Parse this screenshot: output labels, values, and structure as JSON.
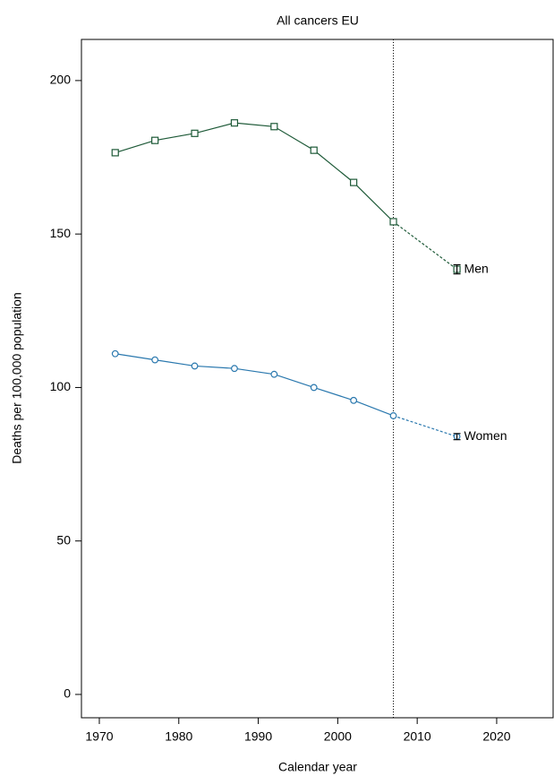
{
  "chart_data": {
    "type": "line",
    "title": "All cancers EU",
    "x_label": "Calendar year",
    "y_label": "Deaths per 100,000 population",
    "x": [
      1972,
      1977,
      1982,
      1987,
      1992,
      1997,
      2002,
      2007
    ],
    "xlim": [
      1967.75,
      2027.1
    ],
    "ylim": [
      -7.6,
      213.4
    ],
    "xticks": [
      1970,
      1980,
      1990,
      2000,
      2010,
      2020
    ],
    "yticks": [
      0,
      50,
      100,
      150,
      200
    ],
    "vline": 2007,
    "series": [
      {
        "name": "Men",
        "color": "#1e5a38",
        "marker": "square",
        "values": [
          176.5,
          180.5,
          182.8,
          186.2,
          185,
          177.3,
          166.8,
          154
        ],
        "predicted": {
          "x": 2015,
          "value": 138.5,
          "error": 1.5
        }
      },
      {
        "name": "Women",
        "color": "#2a78ae",
        "marker": "circle",
        "values": [
          111,
          109,
          107,
          106.2,
          104.3,
          100,
          95.8,
          90.8
        ],
        "predicted": {
          "x": 2015,
          "value": 84,
          "error": 1
        }
      }
    ]
  }
}
